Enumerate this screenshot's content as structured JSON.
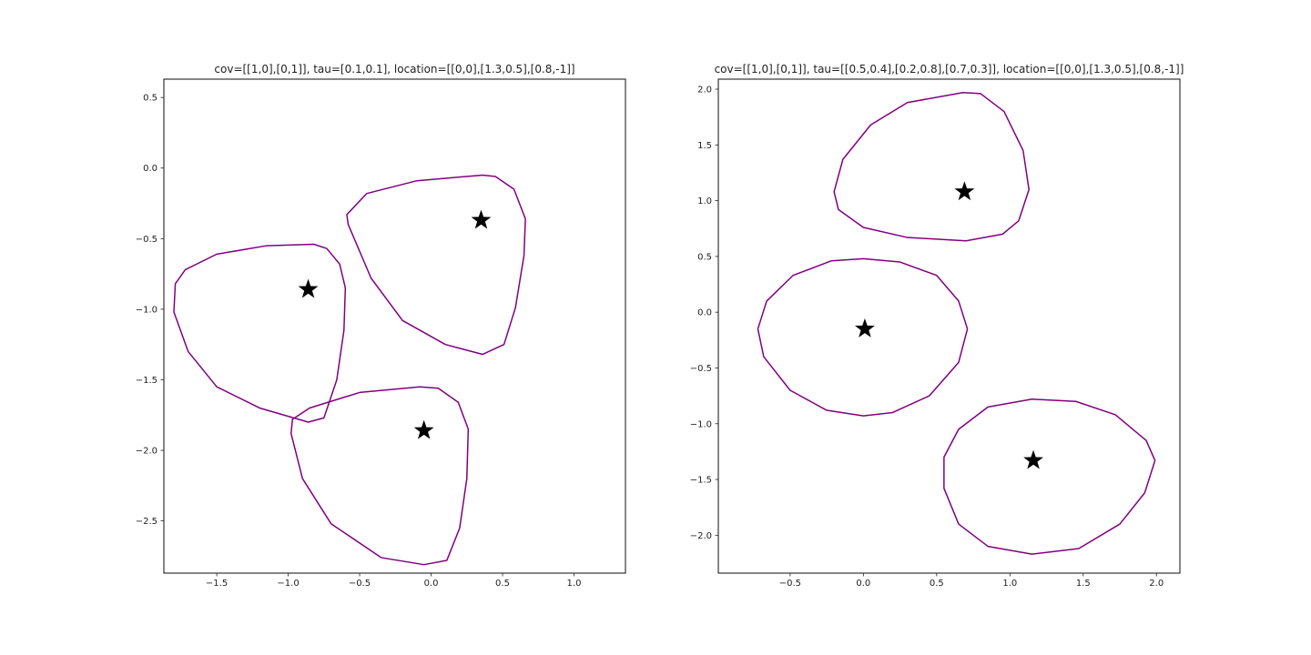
{
  "chart_data": [
    {
      "type": "contour",
      "title": "cov=[[1,0],[0,1]], tau=[0.1,0.1], location=[[0,0],[1.3,0.5],[0.8,-1]]",
      "xlim": [
        -1.87,
        1.36
      ],
      "ylim": [
        -2.87,
        0.63
      ],
      "xticks": [
        -1.5,
        -1.0,
        -0.5,
        0.0,
        0.5,
        1.0
      ],
      "yticks": [
        0.5,
        0.0,
        -0.5,
        -1.0,
        -1.5,
        -2.0,
        -2.5
      ],
      "xtick_labels": [
        "−1.5",
        "−1.0",
        "−0.5",
        "0.0",
        "0.5",
        "1.0"
      ],
      "ytick_labels": [
        "0.5",
        "0.0",
        "−0.5",
        "−1.0",
        "−1.5",
        "−2.0",
        "−2.5"
      ],
      "grid": false,
      "line_color": "#800080",
      "marker_color": "#000000",
      "marker": "star",
      "stars": [
        {
          "x": -0.86,
          "y": -0.86
        },
        {
          "x": 0.35,
          "y": -0.37
        },
        {
          "x": -0.05,
          "y": -1.86
        }
      ],
      "contours": [
        [
          [
            -0.82,
            -0.54
          ],
          [
            -0.73,
            -0.57
          ],
          [
            -0.64,
            -0.68
          ],
          [
            -0.6,
            -0.85
          ],
          [
            -0.61,
            -1.15
          ],
          [
            -0.66,
            -1.5
          ],
          [
            -0.75,
            -1.77
          ],
          [
            -0.86,
            -1.8
          ],
          [
            -1.2,
            -1.7
          ],
          [
            -1.5,
            -1.55
          ],
          [
            -1.7,
            -1.3
          ],
          [
            -1.8,
            -1.02
          ],
          [
            -1.79,
            -0.82
          ],
          [
            -1.72,
            -0.72
          ],
          [
            -1.5,
            -0.61
          ],
          [
            -1.15,
            -0.55
          ],
          [
            -0.82,
            -0.54
          ]
        ],
        [
          [
            0.36,
            -0.05
          ],
          [
            0.45,
            -0.06
          ],
          [
            0.58,
            -0.15
          ],
          [
            0.66,
            -0.36
          ],
          [
            0.65,
            -0.62
          ],
          [
            0.59,
            -0.99
          ],
          [
            0.51,
            -1.25
          ],
          [
            0.36,
            -1.32
          ],
          [
            0.1,
            -1.25
          ],
          [
            -0.2,
            -1.08
          ],
          [
            -0.42,
            -0.78
          ],
          [
            -0.58,
            -0.4
          ],
          [
            -0.59,
            -0.33
          ],
          [
            -0.45,
            -0.18
          ],
          [
            -0.1,
            -0.09
          ],
          [
            0.36,
            -0.05
          ]
        ],
        [
          [
            -0.08,
            -1.55
          ],
          [
            0.05,
            -1.56
          ],
          [
            0.19,
            -1.66
          ],
          [
            0.26,
            -1.85
          ],
          [
            0.25,
            -2.2
          ],
          [
            0.2,
            -2.55
          ],
          [
            0.11,
            -2.78
          ],
          [
            -0.05,
            -2.81
          ],
          [
            -0.35,
            -2.76
          ],
          [
            -0.7,
            -2.52
          ],
          [
            -0.9,
            -2.2
          ],
          [
            -0.98,
            -1.88
          ],
          [
            -0.97,
            -1.78
          ],
          [
            -0.85,
            -1.7
          ],
          [
            -0.5,
            -1.59
          ],
          [
            -0.08,
            -1.55
          ]
        ]
      ]
    },
    {
      "type": "contour",
      "title": "cov=[[1,0],[0,1]], tau=[[0.5,0.4],[0.2,0.8],[0.7,0.3]], location=[[0,0],[1.3,0.5],[0.8,-1]]",
      "xlim": [
        -0.99,
        2.16
      ],
      "ylim": [
        -2.34,
        2.09
      ],
      "xticks": [
        -0.5,
        0.0,
        0.5,
        1.0,
        1.5,
        2.0
      ],
      "yticks": [
        2.0,
        1.5,
        1.0,
        0.5,
        0.0,
        -0.5,
        -1.0,
        -1.5,
        -2.0
      ],
      "xtick_labels": [
        "−0.5",
        "0.0",
        "0.5",
        "1.0",
        "1.5",
        "2.0"
      ],
      "ytick_labels": [
        "2.0",
        "1.5",
        "1.0",
        "0.5",
        "0.0",
        "−0.5",
        "−1.0",
        "−1.5",
        "−2.0"
      ],
      "grid": false,
      "line_color": "#800080",
      "marker_color": "#000000",
      "marker": "star",
      "stars": [
        {
          "x": 0.69,
          "y": 1.08
        },
        {
          "x": 0.01,
          "y": -0.15
        },
        {
          "x": 1.16,
          "y": -1.33
        }
      ],
      "contours": [
        [
          [
            0.68,
            1.97
          ],
          [
            0.8,
            1.96
          ],
          [
            0.96,
            1.8
          ],
          [
            1.09,
            1.45
          ],
          [
            1.13,
            1.1
          ],
          [
            1.06,
            0.82
          ],
          [
            0.95,
            0.7
          ],
          [
            0.7,
            0.64
          ],
          [
            0.3,
            0.67
          ],
          [
            0.0,
            0.76
          ],
          [
            -0.17,
            0.92
          ],
          [
            -0.2,
            1.08
          ],
          [
            -0.14,
            1.37
          ],
          [
            0.05,
            1.68
          ],
          [
            0.3,
            1.88
          ],
          [
            0.68,
            1.97
          ]
        ],
        [
          [
            0.0,
            0.48
          ],
          [
            0.25,
            0.45
          ],
          [
            0.5,
            0.33
          ],
          [
            0.65,
            0.1
          ],
          [
            0.71,
            -0.15
          ],
          [
            0.65,
            -0.45
          ],
          [
            0.45,
            -0.75
          ],
          [
            0.2,
            -0.9
          ],
          [
            0.0,
            -0.93
          ],
          [
            -0.25,
            -0.88
          ],
          [
            -0.5,
            -0.7
          ],
          [
            -0.68,
            -0.4
          ],
          [
            -0.72,
            -0.15
          ],
          [
            -0.66,
            0.1
          ],
          [
            -0.48,
            0.33
          ],
          [
            -0.22,
            0.46
          ],
          [
            0.0,
            0.48
          ]
        ],
        [
          [
            1.15,
            -0.78
          ],
          [
            1.45,
            -0.8
          ],
          [
            1.72,
            -0.92
          ],
          [
            1.93,
            -1.15
          ],
          [
            1.99,
            -1.33
          ],
          [
            1.92,
            -1.62
          ],
          [
            1.75,
            -1.9
          ],
          [
            1.47,
            -2.12
          ],
          [
            1.15,
            -2.17
          ],
          [
            0.85,
            -2.1
          ],
          [
            0.65,
            -1.9
          ],
          [
            0.55,
            -1.58
          ],
          [
            0.55,
            -1.3
          ],
          [
            0.65,
            -1.05
          ],
          [
            0.85,
            -0.85
          ],
          [
            1.15,
            -0.78
          ]
        ]
      ]
    }
  ]
}
